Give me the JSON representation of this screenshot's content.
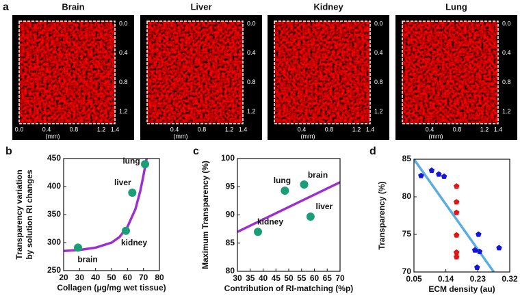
{
  "panel_a": {
    "label": "a",
    "images": [
      {
        "title": "Brain",
        "right_ticks": [
          "0.0",
          "0.4",
          "0.8",
          "1.2"
        ],
        "bottom_ticks": [
          "0.0",
          "0.4",
          "0.8",
          "1.2",
          "1.4"
        ],
        "unit": "(mm)"
      },
      {
        "title": "Liver",
        "right_ticks": [
          "0.0",
          "0.4",
          "0.8",
          "1.2"
        ],
        "bottom_ticks": [
          "0.4",
          "0.8",
          "1.2",
          "1.4"
        ],
        "unit": "(mm)"
      },
      {
        "title": "Kidney",
        "right_ticks": [
          "0.0",
          "0.4",
          "0.8",
          "1.2"
        ],
        "bottom_ticks": [
          "0.4",
          "0.8",
          "1.2",
          "1.4"
        ],
        "unit": "(mm)"
      },
      {
        "title": "Lung",
        "right_ticks": [
          "0.0",
          "0.4",
          "0.8",
          "1.2"
        ],
        "bottom_ticks": [
          "0.4",
          "0.8",
          "1.2",
          "1.4"
        ],
        "unit": "(mm)"
      }
    ]
  },
  "chart_data": [
    {
      "type": "scatter",
      "panel": "b",
      "xlabel": "Collagen (μg/mg wet tissue)",
      "ylabel": [
        "Transparency variation",
        "by solution RI changes"
      ],
      "xlim": [
        20,
        80
      ],
      "xticks": [
        20,
        30,
        40,
        50,
        60,
        70,
        80
      ],
      "ylim": [
        250,
        450
      ],
      "yticks": [
        250,
        300,
        350,
        400,
        450
      ],
      "series": [
        {
          "mode": "line",
          "color": "#9b2fcf",
          "x": [
            20,
            30,
            40,
            50,
            55,
            60,
            65,
            68,
            70,
            72
          ],
          "values": [
            285,
            287,
            291,
            300,
            310,
            328,
            360,
            392,
            420,
            450
          ]
        },
        {
          "mode": "markers",
          "marker": "circle",
          "color": "#1a9e77",
          "x": [
            29,
            59,
            63,
            71
          ],
          "values": [
            291,
            321,
            389,
            440
          ],
          "labels": [
            "brain",
            "kidney",
            "liver",
            "lung"
          ]
        }
      ]
    },
    {
      "type": "scatter",
      "panel": "c",
      "xlabel": "Contribution of RI-matching (%p)",
      "ylabel": "Maximum Transparency (%)",
      "xlim": [
        30,
        70
      ],
      "xticks": [
        30,
        35,
        40,
        45,
        50,
        55,
        60,
        65,
        70
      ],
      "ylim": [
        80,
        100
      ],
      "yticks": [
        80,
        85,
        90,
        95,
        100
      ],
      "series": [
        {
          "mode": "line",
          "color": "#9b2fcf",
          "x": [
            30,
            70
          ],
          "values": [
            87,
            95.8
          ]
        },
        {
          "mode": "markers",
          "marker": "circle",
          "color": "#1a9e77",
          "x": [
            38,
            48.5,
            56,
            58.5
          ],
          "values": [
            87,
            94.3,
            95.4,
            89.7
          ],
          "labels": [
            "kidney",
            "lung",
            "brain",
            "liver"
          ]
        }
      ]
    },
    {
      "type": "scatter",
      "panel": "d",
      "xlabel": "ECM density (au)",
      "ylabel": "Transparency (%)",
      "xlim": [
        0.05,
        0.32
      ],
      "xticks": [
        0.05,
        0.14,
        0.23,
        0.32
      ],
      "ylim": [
        70,
        85
      ],
      "yticks": [
        70,
        75,
        80,
        85
      ],
      "series": [
        {
          "mode": "line",
          "color": "#5aade0",
          "x": [
            0.05,
            0.275
          ],
          "values": [
            85,
            70
          ]
        },
        {
          "mode": "markers",
          "marker": "pentagon",
          "color": "#1515d8",
          "x": [
            0.07,
            0.1,
            0.12,
            0.135,
            0.222,
            0.232,
            0.235,
            0.228,
            0.29
          ],
          "values": [
            82.8,
            83.5,
            83.0,
            82.7,
            72.9,
            75.0,
            72.7,
            70.6,
            73.2
          ]
        },
        {
          "mode": "markers",
          "marker": "pentagon",
          "color": "#e01515",
          "x": [
            0.17,
            0.17,
            0.17,
            0.17,
            0.17,
            0.17
          ],
          "values": [
            81.4,
            79.3,
            77.9,
            74.9,
            72.6,
            72.0
          ]
        }
      ]
    }
  ]
}
